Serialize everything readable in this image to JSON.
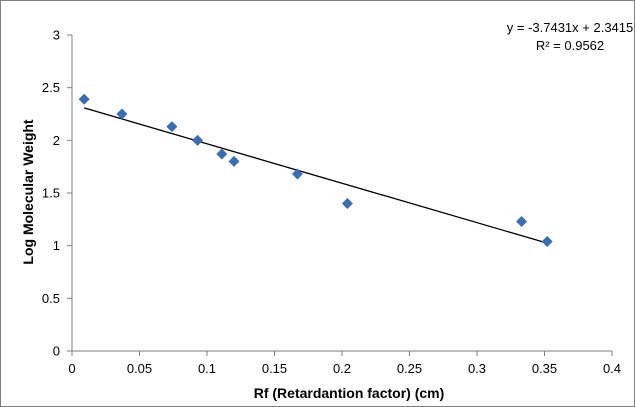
{
  "chart_data": {
    "type": "scatter",
    "title": "",
    "xlabel": "Rf (Retardantion factor) (cm)",
    "ylabel": "Log  Molecular Weight",
    "xlim": [
      0,
      0.4
    ],
    "ylim": [
      0,
      3
    ],
    "x_ticks": [
      "0",
      "0.05",
      "0.1",
      "0.15",
      "0.2",
      "0.25",
      "0.3",
      "0.35",
      "0.4"
    ],
    "y_ticks": [
      "0",
      "0.5",
      "1",
      "1.5",
      "2",
      "2.5",
      "3"
    ],
    "grid": false,
    "marker_color": "#3b6db5",
    "points": [
      {
        "x": 0.009,
        "y": 2.39
      },
      {
        "x": 0.037,
        "y": 2.25
      },
      {
        "x": 0.074,
        "y": 2.13
      },
      {
        "x": 0.093,
        "y": 2.0
      },
      {
        "x": 0.111,
        "y": 1.87
      },
      {
        "x": 0.12,
        "y": 1.8
      },
      {
        "x": 0.167,
        "y": 1.68
      },
      {
        "x": 0.204,
        "y": 1.4
      },
      {
        "x": 0.333,
        "y": 1.23
      },
      {
        "x": 0.352,
        "y": 1.04
      }
    ],
    "trendline": {
      "slope": -3.7431,
      "intercept": 2.3415,
      "x_range": [
        0.009,
        0.352
      ],
      "color": "#000000"
    },
    "equation_text": "y = -3.7431x + 2.3415",
    "r2_text": "R² = 0.9562"
  }
}
